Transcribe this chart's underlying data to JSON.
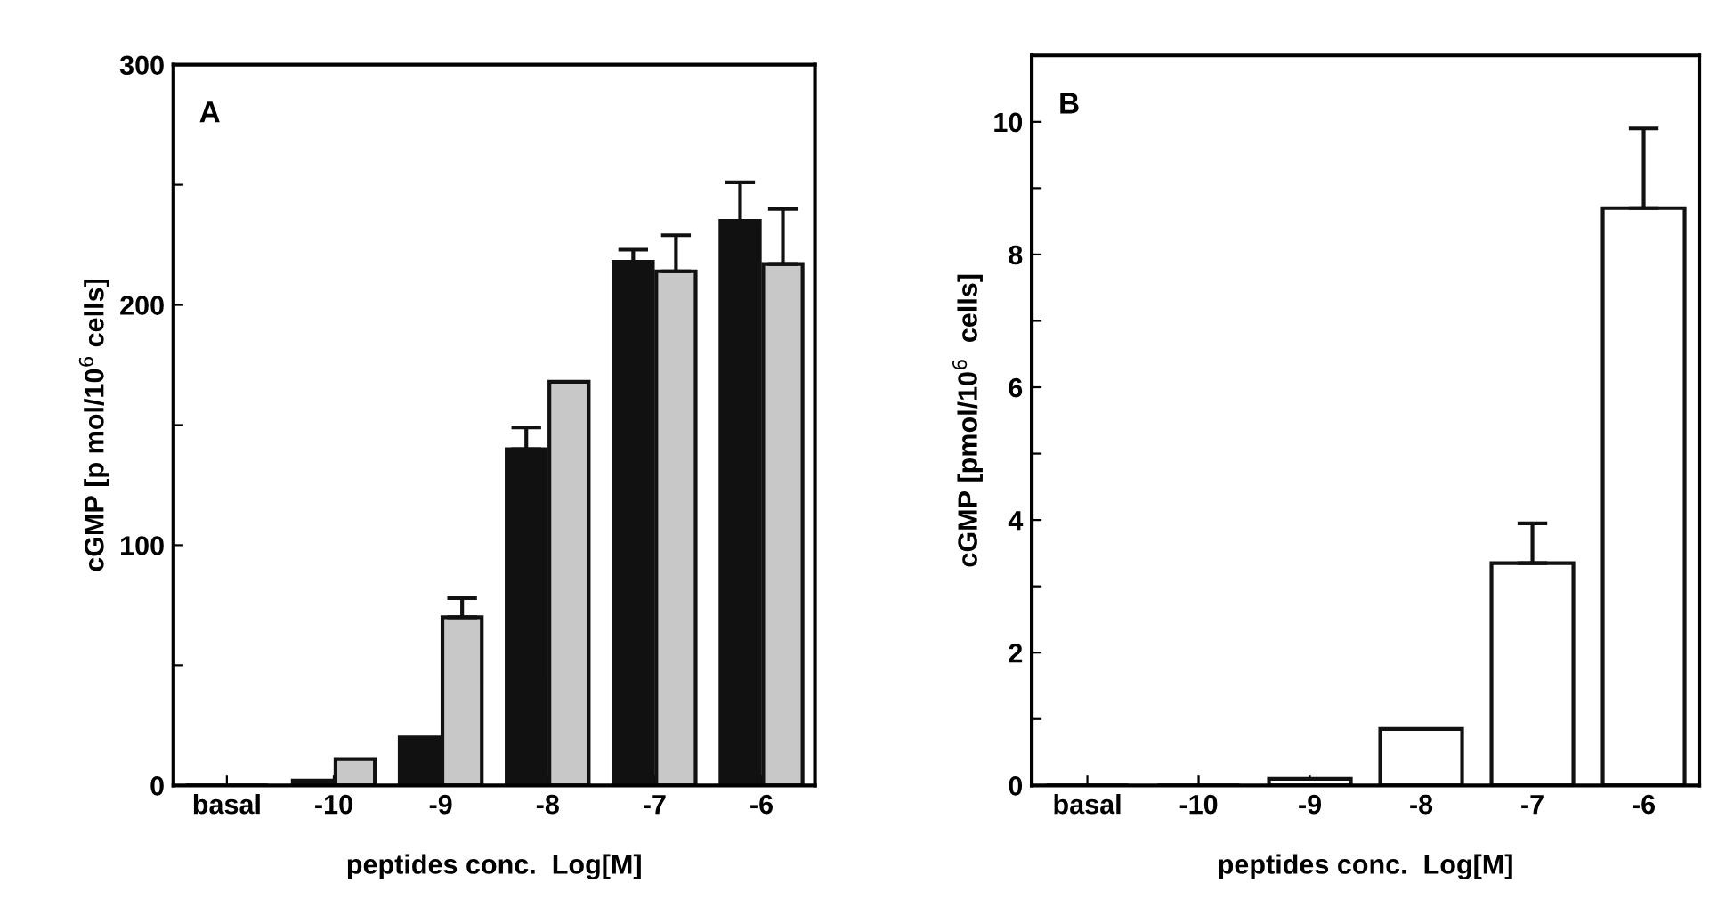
{
  "chart_data": [
    {
      "type": "bar",
      "title": "A",
      "xlabel": "peptides conc.  Log[M]",
      "ylabel": "cGMP [p mol/10$^{6}$ cells]",
      "categories": [
        "basal",
        "-10",
        "-9",
        "-8",
        "-7",
        "-6"
      ],
      "series": [
        {
          "color": "#111111",
          "values": [
            null,
            2,
            20,
            140,
            218,
            235
          ],
          "errors": [
            null,
            null,
            null,
            [
              140,
              149
            ],
            [
              218,
              223
            ],
            [
              235,
              251
            ]
          ]
        },
        {
          "color": "#c8c8c8",
          "values": [
            null,
            11,
            70,
            168,
            214,
            217
          ],
          "errors": [
            null,
            null,
            [
              70,
              78
            ],
            null,
            [
              214,
              229
            ],
            [
              217,
              240
            ]
          ]
        }
      ],
      "ylim": [
        0,
        300
      ],
      "yticks": [
        0,
        {
          "value": 50,
          "label": null
        },
        100,
        {
          "value": 150,
          "label": null
        },
        200,
        {
          "value": 250,
          "label": null
        },
        300
      ]
    },
    {
      "type": "bar",
      "title": "B",
      "xlabel": "peptides conc.  Log[M]",
      "ylabel": "cGMP [pmol/10$^{6}$  cells]",
      "categories": [
        "basal",
        "-10",
        "-9",
        "-8",
        "-7",
        "-6"
      ],
      "series": [
        {
          "color": "#ffffff",
          "values": [
            null,
            null,
            0.1,
            0.85,
            3.35,
            8.7
          ],
          "errors": [
            null,
            null,
            null,
            null,
            [
              3.35,
              3.95
            ],
            [
              8.7,
              9.9
            ]
          ]
        }
      ],
      "ylim": [
        0,
        11
      ],
      "yticks": [
        0,
        {
          "value": 1,
          "label": null
        },
        2,
        {
          "value": 3,
          "label": null
        },
        4,
        {
          "value": 5,
          "label": null
        },
        6,
        {
          "value": 7,
          "label": null
        },
        8,
        {
          "value": 9,
          "label": null
        },
        10
      ]
    }
  ]
}
